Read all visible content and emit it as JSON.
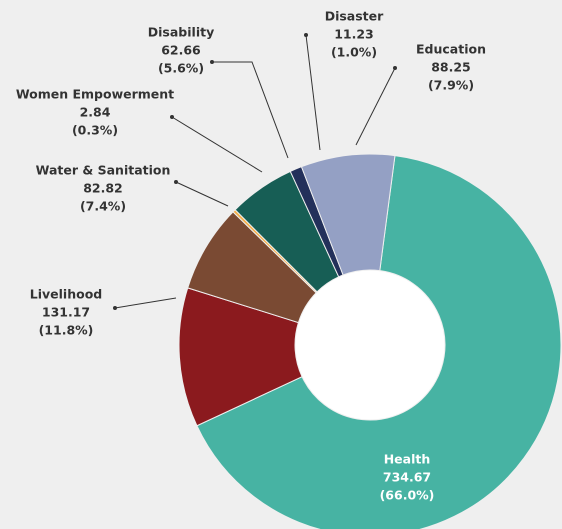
{
  "chart_data": {
    "type": "pie",
    "donut": true,
    "categories": [
      "Health",
      "Livelihood",
      "Water & Sanitation",
      "Women Empowerment",
      "Disability",
      "Disaster",
      "Education"
    ],
    "values": [
      734.67,
      131.17,
      82.82,
      2.84,
      62.66,
      11.23,
      88.25
    ],
    "percent_labels": [
      "(66.0%)",
      "(11.8%)",
      "(7.4%)",
      "(0.3%)",
      "(5.6%)",
      "(1.0%)",
      "(7.9%)"
    ],
    "colors": [
      "#47b3a3",
      "#8b1a1e",
      "#7a4a33",
      "#f5b04a",
      "#175e55",
      "#23305a",
      "#94a0c4"
    ]
  }
}
